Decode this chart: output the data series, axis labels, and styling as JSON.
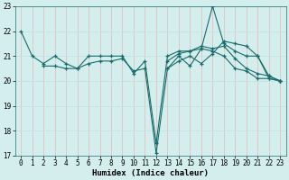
{
  "xlabel": "Humidex (Indice chaleur)",
  "bg_color": "#d4eeee",
  "grid_color": "#c0dede",
  "line_color": "#1a6b6b",
  "xlim": [
    -0.5,
    23.5
  ],
  "ylim": [
    17,
    23
  ],
  "yticks": [
    17,
    18,
    19,
    20,
    21,
    22,
    23
  ],
  "xticks": [
    0,
    1,
    2,
    3,
    4,
    5,
    6,
    7,
    8,
    9,
    10,
    11,
    12,
    13,
    14,
    15,
    16,
    17,
    18,
    19,
    20,
    21,
    22,
    23
  ],
  "series": [
    [
      22.0,
      21.0,
      20.7,
      21.0,
      20.7,
      20.5,
      21.0,
      21.0,
      21.0,
      21.0,
      20.3,
      20.8,
      17.5,
      21.0,
      21.2,
      21.2,
      21.3,
      23.0,
      21.5,
      21.2,
      21.0,
      21.0,
      20.2,
      20.0
    ],
    [
      null,
      null,
      20.6,
      20.6,
      20.5,
      20.5,
      20.7,
      20.8,
      20.8,
      20.9,
      20.4,
      20.5,
      17.1,
      20.5,
      21.0,
      20.6,
      21.3,
      21.2,
      21.0,
      20.5,
      20.4,
      20.1,
      20.1,
      20.0
    ],
    [
      null,
      null,
      null,
      null,
      null,
      null,
      null,
      null,
      null,
      null,
      null,
      null,
      null,
      20.5,
      20.8,
      21.0,
      20.7,
      21.1,
      21.6,
      21.5,
      21.4,
      21.0,
      20.1,
      20.0
    ],
    [
      null,
      null,
      null,
      null,
      null,
      null,
      null,
      null,
      null,
      null,
      null,
      null,
      null,
      20.8,
      21.1,
      21.2,
      21.4,
      21.3,
      21.4,
      20.9,
      20.5,
      20.3,
      20.2,
      20.0
    ]
  ],
  "tick_fontsize": 5.5,
  "label_fontsize": 6.5
}
